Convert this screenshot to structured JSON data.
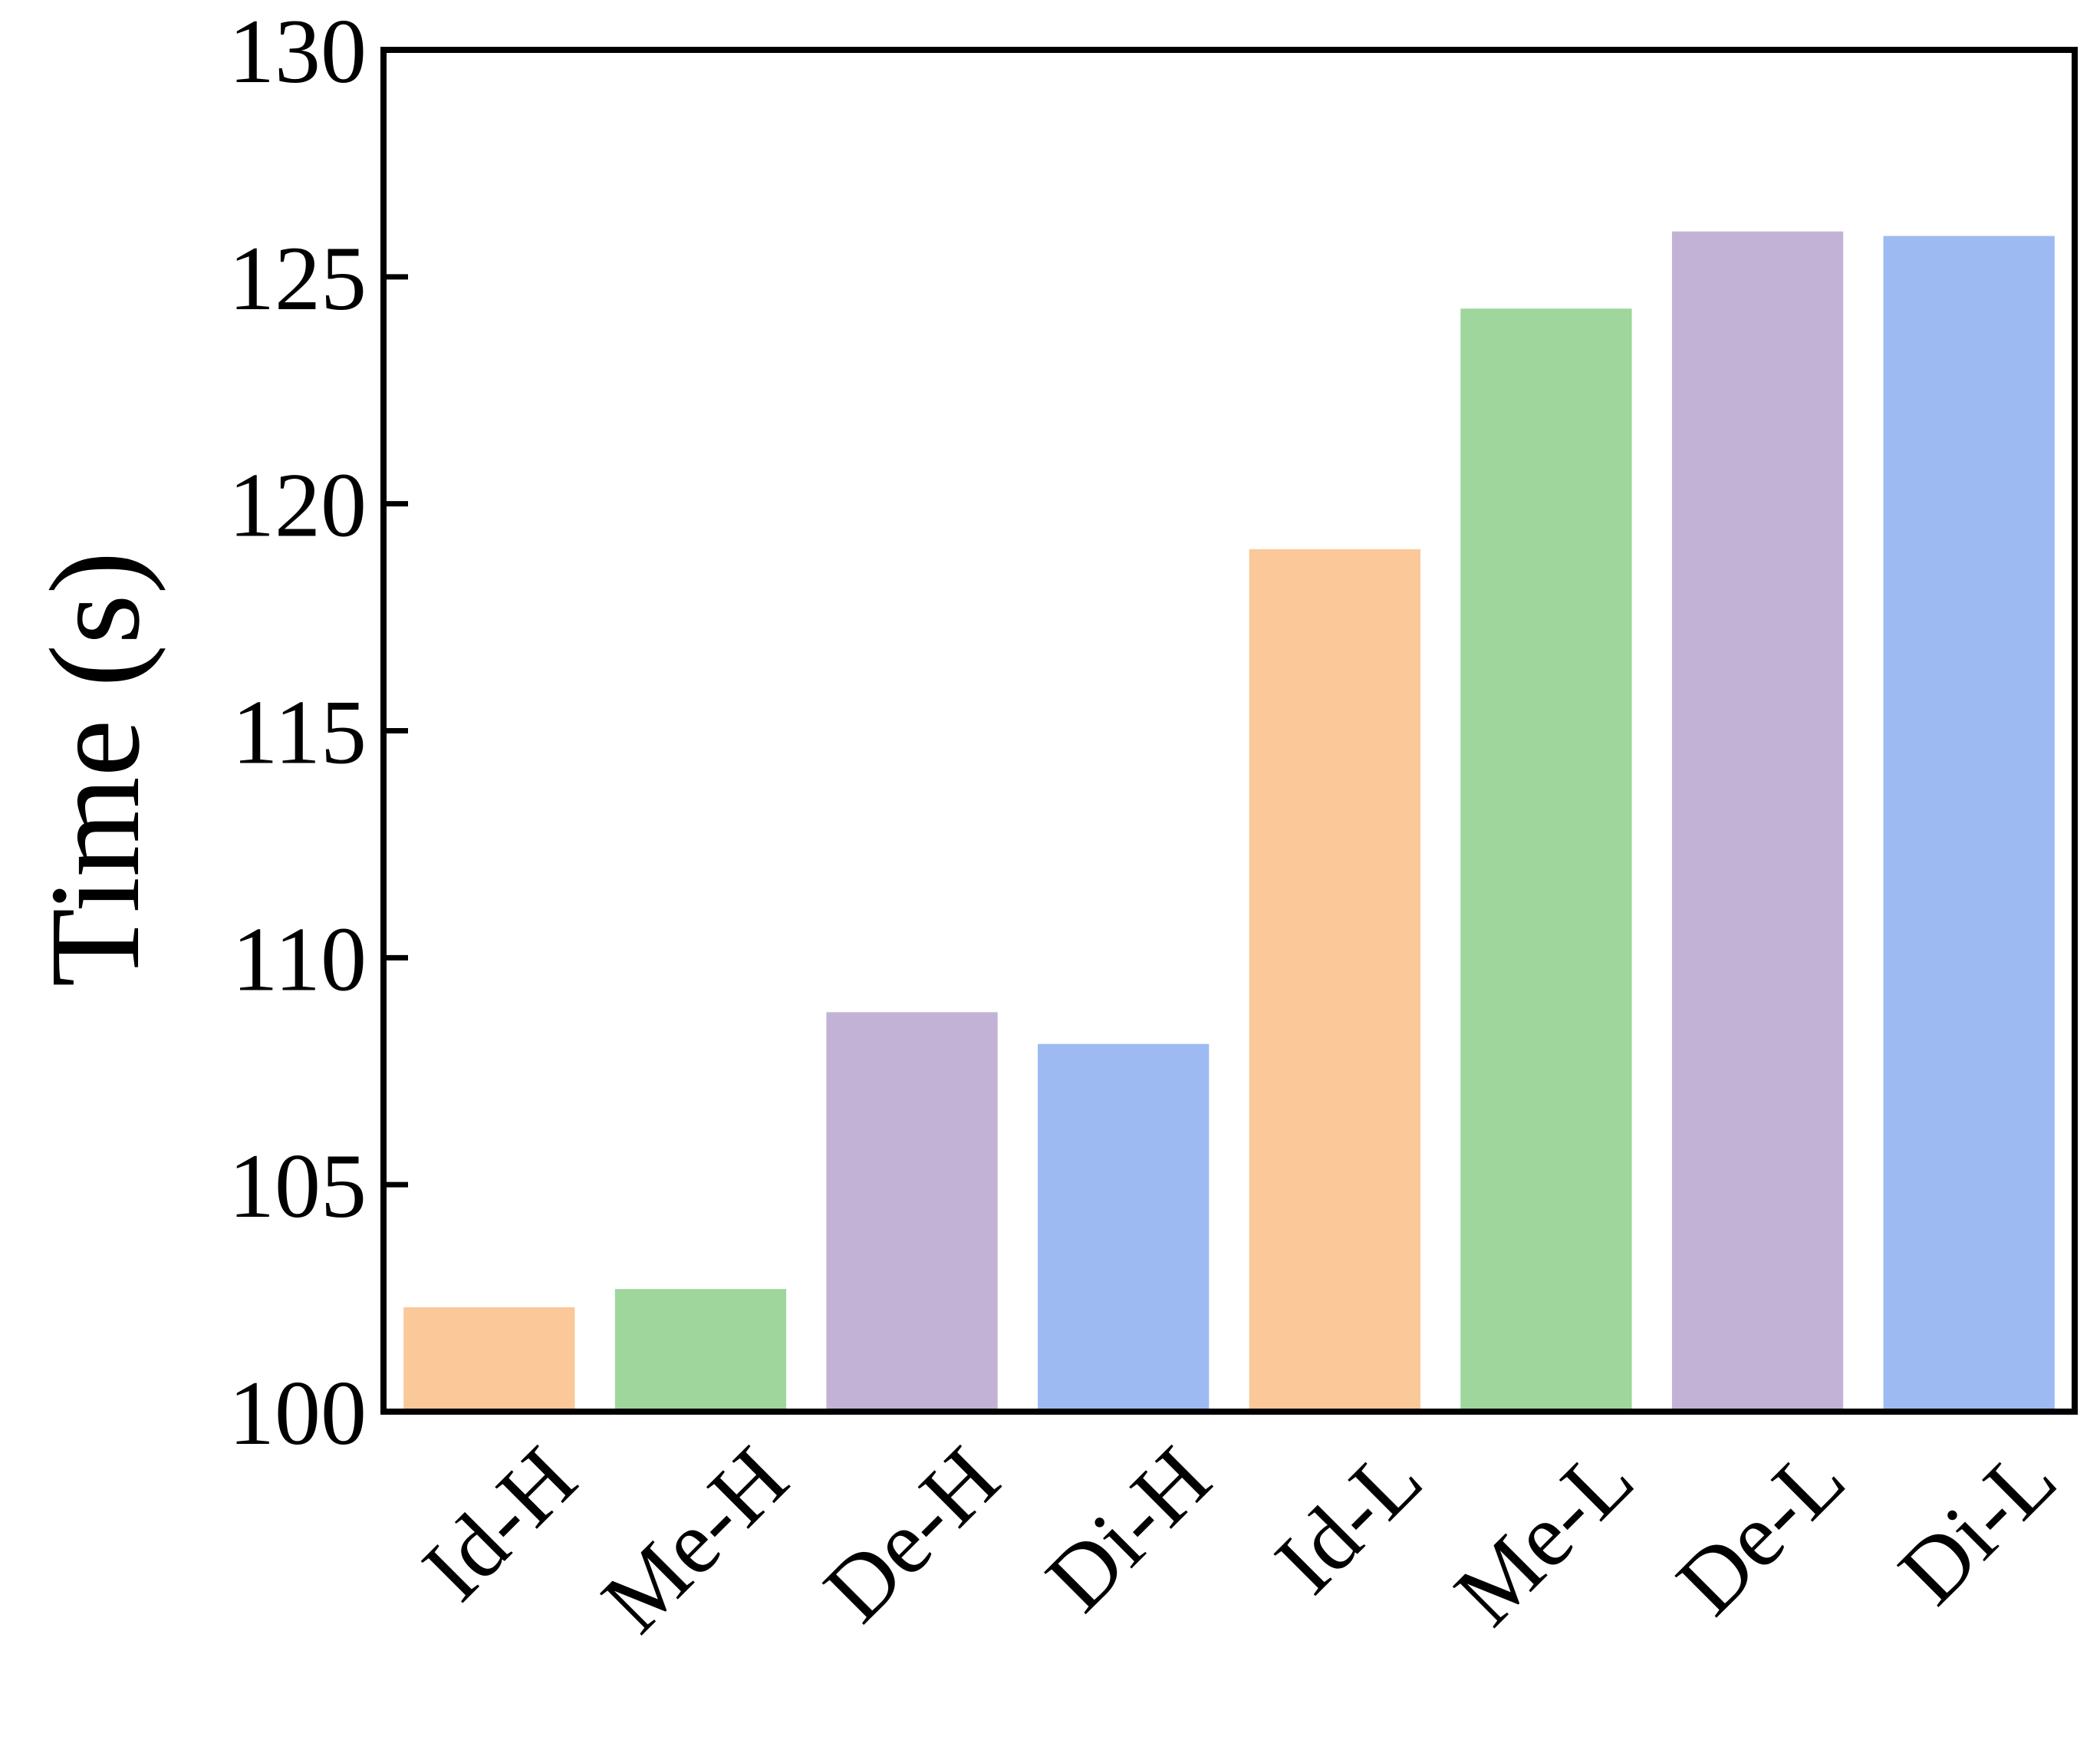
{
  "chart_data": {
    "type": "bar",
    "title": "",
    "xlabel": "",
    "ylabel": "Time (s)",
    "ylim": [
      100,
      130
    ],
    "yticks": [
      "100",
      "105",
      "110",
      "115",
      "120",
      "125",
      "130"
    ],
    "grid": false,
    "legend": "none",
    "categories": [
      "Id-H",
      "Me-H",
      "De-H",
      "Di-H",
      "Id-L",
      "Me-L",
      "De-L",
      "Di-L"
    ],
    "values": [
      102.3,
      102.7,
      108.8,
      108.1,
      119.0,
      124.3,
      126.0,
      125.9
    ],
    "colors": [
      "#FBC899",
      "#9ED69C",
      "#C2B2D6",
      "#9DBAF2",
      "#FBC899",
      "#9ED69C",
      "#C2B2D6",
      "#9DBAF2"
    ]
  }
}
